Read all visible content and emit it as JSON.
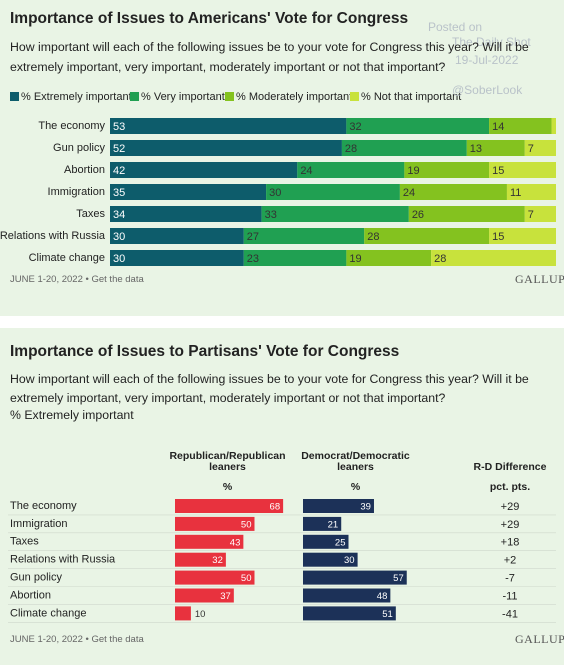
{
  "chart_data": [
    {
      "type": "stacked-bar",
      "title": "Importance of Issues to Americans' Vote for Congress",
      "subtitle": "How important will each of the following issues be to your vote for Congress this year? Will it be extremely important, very important, moderately important or not that important?",
      "categories": [
        "The economy",
        "Gun policy",
        "Abortion",
        "Immigration",
        "Taxes",
        "Relations with Russia",
        "Climate change"
      ],
      "series": [
        {
          "name": "% Extremely important",
          "color": "#0d5c6b",
          "values": [
            53,
            52,
            42,
            35,
            34,
            30,
            30
          ]
        },
        {
          "name": "% Very important",
          "color": "#20a052",
          "values": [
            32,
            28,
            24,
            30,
            33,
            27,
            23
          ]
        },
        {
          "name": "% Moderately important",
          "color": "#84c21f",
          "values": [
            14,
            13,
            19,
            24,
            26,
            28,
            19
          ]
        },
        {
          "name": "% Not that important",
          "color": "#c8e23c",
          "values": [
            1,
            7,
            15,
            11,
            7,
            15,
            28
          ]
        }
      ],
      "footnote": "JUNE 1-20, 2022 • Get the data",
      "source": "GALLUP"
    },
    {
      "type": "paired-bar",
      "title": "Importance of Issues to Partisans' Vote for Congress",
      "subtitle": "How important will each of the following issues be to your vote for Congress this year? Will it be extremely important, very important, moderately important or not that important?",
      "measure": "% Extremely important",
      "categories": [
        "The economy",
        "Immigration",
        "Taxes",
        "Relations with Russia",
        "Gun policy",
        "Abortion",
        "Climate change"
      ],
      "series": [
        {
          "name": "Republican/Republican leaners",
          "unit": "%",
          "color": "#e8323e",
          "values": [
            68,
            50,
            43,
            32,
            50,
            37,
            10
          ]
        },
        {
          "name": "Democrat/Democratic leaners",
          "unit": "%",
          "color": "#1c3158",
          "values": [
            39,
            21,
            25,
            30,
            57,
            48,
            51
          ]
        }
      ],
      "difference": {
        "name": "R-D Difference",
        "unit": "pct. pts.",
        "values": [
          29,
          29,
          18,
          2,
          -7,
          -11,
          -41
        ],
        "value_labels": [
          "+29",
          "+29",
          "+18",
          "+2",
          "-7",
          "-11",
          "-41"
        ]
      },
      "footnote": "JUNE 1-20, 2022 • Get the data",
      "source": "GALLUP"
    }
  ],
  "watermark": {
    "posted": "Posted on",
    "site": "The Daily Shot",
    "date": "19-Jul-2022",
    "handle": "@SoberLook"
  }
}
